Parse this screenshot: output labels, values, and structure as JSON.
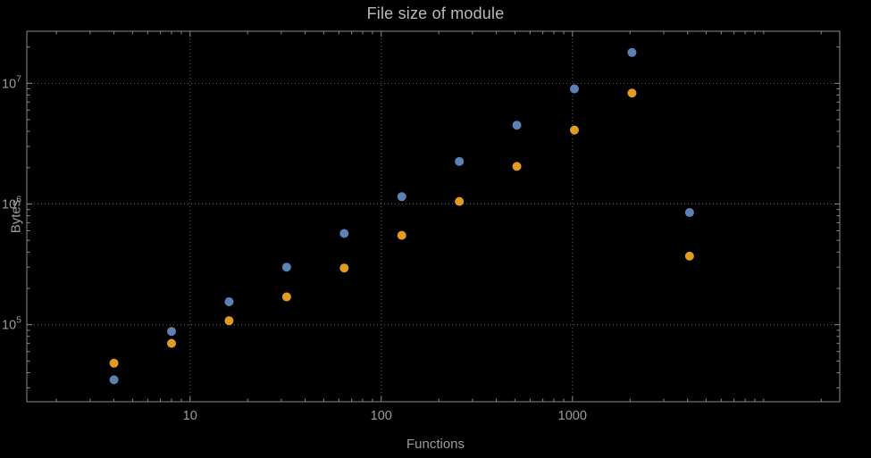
{
  "figure": {
    "title": "File size of module",
    "xlabel": "Functions",
    "ylabel": "Bytes"
  },
  "colors": {
    "background": "#000000",
    "frame": "#8a8a8a",
    "grid": "#5c5c5c",
    "tick_text": "#9c9c9c",
    "title_text": "#bababa"
  },
  "chart_data": {
    "type": "scatter",
    "title": "File size of module",
    "xlabel": "Functions",
    "ylabel": "Bytes",
    "x_scale": "log",
    "y_scale": "log",
    "grid": true,
    "legend": "none",
    "x": [
      4,
      8,
      16,
      32,
      64,
      128,
      256,
      512,
      1024,
      2048,
      4096
    ],
    "series": [
      {
        "name": "series-1-blue",
        "color": "#5e81b5",
        "values": [
          35000,
          88000,
          155000,
          300000,
          570000,
          1150000,
          2250000,
          4500000,
          9000000,
          18000000,
          850000
        ]
      },
      {
        "name": "series-2-orange",
        "color": "#e19c24",
        "values": [
          48000,
          70000,
          108000,
          170000,
          295000,
          550000,
          1050000,
          2050000,
          4100000,
          8300000,
          370000
        ]
      }
    ],
    "x_ticks": [
      10,
      100,
      1000
    ],
    "x_tick_labels": [
      "10",
      "100",
      "1000"
    ],
    "y_ticks": [
      100000,
      1000000,
      10000000
    ],
    "y_tick_labels": [
      {
        "base": "10",
        "exp": "5"
      },
      {
        "base": "10",
        "exp": "6"
      },
      {
        "base": "10",
        "exp": "7"
      }
    ],
    "xlim": [
      1.4,
      25000
    ],
    "ylim": [
      23000,
      27000000
    ]
  }
}
